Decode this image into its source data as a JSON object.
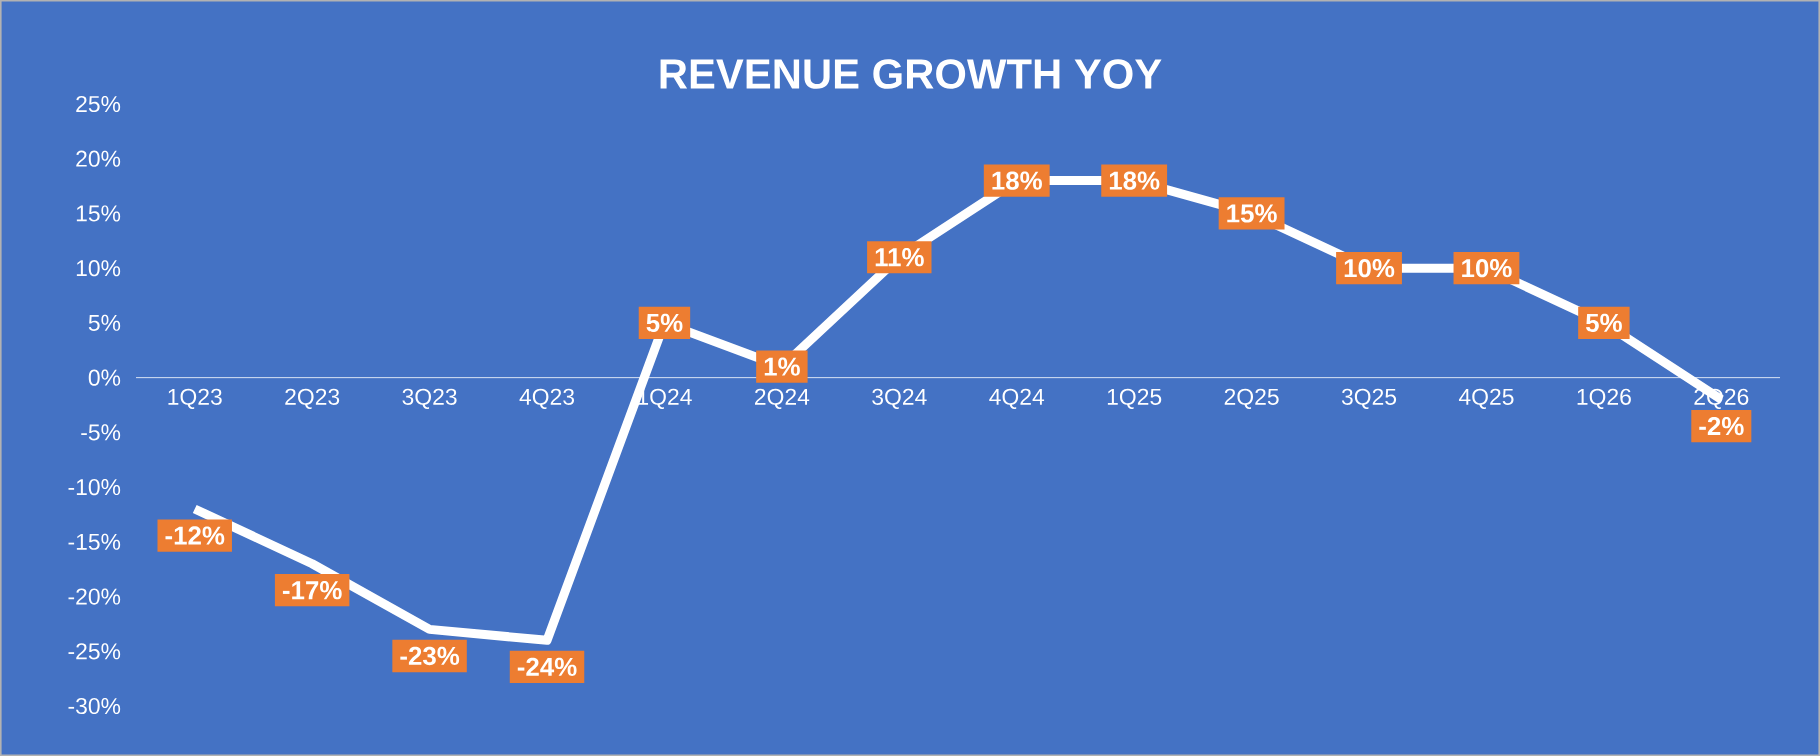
{
  "chart_data": {
    "type": "line",
    "title": "REVENUE GROWTH YOY",
    "categories": [
      "1Q23",
      "2Q23",
      "3Q23",
      "4Q23",
      "1Q24",
      "2Q24",
      "3Q24",
      "4Q24",
      "1Q25",
      "2Q25",
      "3Q25",
      "4Q25",
      "1Q26",
      "2Q26"
    ],
    "values": [
      -12,
      -17,
      -23,
      -24,
      5,
      1,
      11,
      18,
      18,
      15,
      10,
      10,
      5,
      -2
    ],
    "value_labels": [
      "-12%",
      "-17%",
      "-23%",
      "-24%",
      "5%",
      "1%",
      "11%",
      "18%",
      "18%",
      "15%",
      "10%",
      "10%",
      "5%",
      "-2%"
    ],
    "color": "#ffffff",
    "line_style": "solid",
    "ylim": [
      -30,
      25
    ],
    "yticks": [
      {
        "value": -30,
        "label": "-30%"
      },
      {
        "value": -25,
        "label": "-25%"
      },
      {
        "value": -20,
        "label": "-20%"
      },
      {
        "value": -15,
        "label": "-15%"
      },
      {
        "value": -10,
        "label": "-10%"
      },
      {
        "value": -5,
        "label": "-5%"
      },
      {
        "value": 0,
        "label": "0%"
      },
      {
        "value": 5,
        "label": "5%"
      },
      {
        "value": 10,
        "label": "10%"
      },
      {
        "value": 15,
        "label": "15%"
      },
      {
        "value": 20,
        "label": "20%"
      },
      {
        "value": 25,
        "label": "25%"
      }
    ],
    "grid": false
  }
}
